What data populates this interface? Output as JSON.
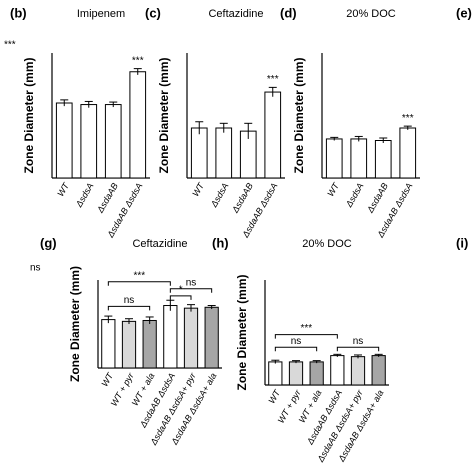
{
  "chart_data": [
    {
      "type": "bar",
      "panel": "(b)",
      "title": "Imipenem",
      "y_label": "Zone Diameter (mm)",
      "categories": [
        "WT",
        "ΔsdsA",
        "ΔsdaAB",
        "ΔsdaAB ΔsdsA"
      ],
      "values": [
        24,
        23.5,
        23.5,
        34
      ],
      "errors": [
        1,
        1,
        0.8,
        1
      ],
      "bar_colors": [
        "#ffffff",
        "#ffffff",
        "#ffffff",
        "#ffffff"
      ],
      "ylim": [
        0,
        40
      ],
      "sig": [
        {
          "label": "***",
          "index": 3
        }
      ]
    },
    {
      "type": "bar",
      "panel": "(c)",
      "title": "Ceftazidine",
      "y_label": "Zone Diameter (mm)",
      "categories": [
        "WT",
        "ΔsdsA",
        "ΔsdaAB",
        "ΔsdaAB ΔsdsA"
      ],
      "values": [
        16,
        16,
        15,
        27.5
      ],
      "errors": [
        2,
        1.5,
        2.5,
        1.5
      ],
      "bar_colors": [
        "#ffffff",
        "#ffffff",
        "#ffffff",
        "#ffffff"
      ],
      "ylim": [
        0,
        40
      ],
      "sig": [
        {
          "label": "***",
          "index": 3
        }
      ]
    },
    {
      "type": "bar",
      "panel": "(d)",
      "title": "20% DOC",
      "y_label": "Zone Diameter (mm)",
      "categories": [
        "WT",
        "ΔsdsA",
        "ΔsdaAB",
        "ΔsdaAB ΔsdsA"
      ],
      "values": [
        12.5,
        12.5,
        12,
        16
      ],
      "errors": [
        0.5,
        0.8,
        0.8,
        0.6
      ],
      "bar_colors": [
        "#ffffff",
        "#ffffff",
        "#ffffff",
        "#ffffff"
      ],
      "ylim": [
        0,
        40
      ],
      "sig": [
        {
          "label": "***",
          "index": 3
        }
      ]
    },
    {
      "type": "bar",
      "panel": "(g)",
      "title": "Ceftazidine",
      "y_label": "Zone Diameter (mm)",
      "categories": [
        "WT",
        "WT + pyr",
        "WT + ala",
        "ΔsdaAB ΔsdsA",
        "ΔsdaAB ΔsdsA+ pyr",
        "ΔsdaAB ΔsdsA+ ala"
      ],
      "values": [
        27.5,
        26.5,
        27,
        35.5,
        34,
        34.5
      ],
      "errors": [
        2,
        1.5,
        2,
        3,
        2,
        1
      ],
      "bar_colors": [
        "#ffffff",
        "#d9d9d9",
        "#a6a6a6",
        "#ffffff",
        "#d9d9d9",
        "#a6a6a6"
      ],
      "ylim": [
        0,
        50
      ],
      "brackets": [
        {
          "label": "***",
          "from": 0,
          "to": 3,
          "y": 49
        },
        {
          "label": "ns",
          "from": 3,
          "to": 5,
          "y": 45
        },
        {
          "label": "*",
          "from": 3,
          "to": 4,
          "y": 41
        },
        {
          "label": "ns",
          "from": 0,
          "to": 2,
          "y": 35
        }
      ]
    },
    {
      "type": "bar",
      "panel": "(h)",
      "title": "20% DOC",
      "y_label": "Zone Diameter (mm)",
      "categories": [
        "WT",
        "WT + pyr",
        "WT + ala",
        "ΔsdaAB ΔsdsA",
        "ΔsdaAB ΔsdsA+ pyr",
        "ΔsdaAB ΔsdsA+ ala"
      ],
      "values": [
        11,
        11,
        11,
        14,
        13.5,
        14
      ],
      "errors": [
        0.8,
        0.6,
        0.6,
        0.6,
        0.8,
        0.6
      ],
      "bar_colors": [
        "#ffffff",
        "#d9d9d9",
        "#a6a6a6",
        "#ffffff",
        "#d9d9d9",
        "#a6a6a6"
      ],
      "ylim": [
        0,
        50
      ],
      "brackets": [
        {
          "label": "***",
          "from": 0,
          "to": 3,
          "y": 24
        },
        {
          "label": "ns",
          "from": 0,
          "to": 2,
          "y": 18
        },
        {
          "label": "ns",
          "from": 3,
          "to": 5,
          "y": 18
        }
      ]
    }
  ],
  "fragments": [
    "***",
    "ns",
    "(e)",
    "(i)"
  ]
}
